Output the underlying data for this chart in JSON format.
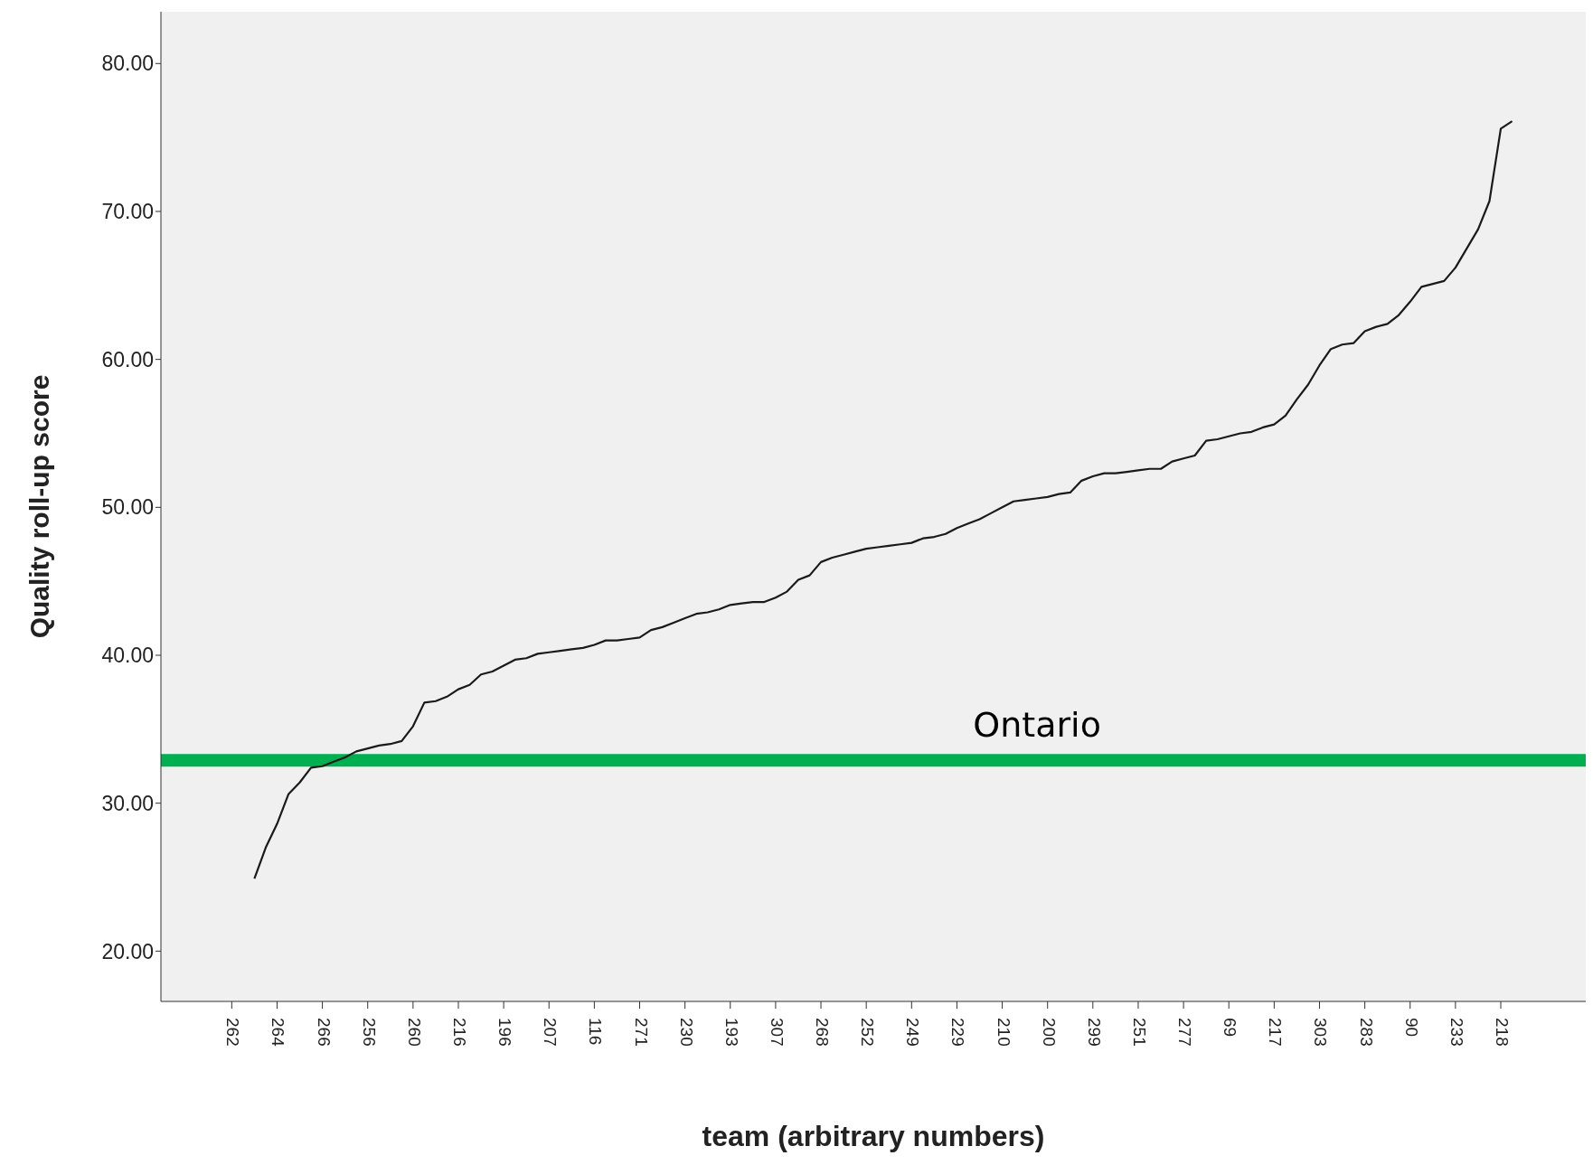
{
  "chart_data": {
    "type": "line",
    "xlabel": "team (arbitrary numbers)",
    "ylabel": "Quality roll-up score",
    "categories": [
      "262",
      null,
      null,
      null,
      "264",
      null,
      null,
      null,
      "266",
      null,
      null,
      null,
      "256",
      null,
      null,
      null,
      "260",
      null,
      null,
      null,
      "216",
      null,
      null,
      null,
      "196",
      null,
      null,
      null,
      "207",
      null,
      null,
      null,
      "116",
      null,
      null,
      null,
      "271",
      null,
      null,
      null,
      "230",
      null,
      null,
      null,
      "193",
      null,
      null,
      null,
      "307",
      null,
      null,
      null,
      "268",
      null,
      null,
      null,
      "252",
      null,
      null,
      null,
      "249",
      null,
      null,
      null,
      "229",
      null,
      null,
      null,
      "210",
      null,
      null,
      null,
      "200",
      null,
      null,
      null,
      "299",
      null,
      null,
      null,
      "251",
      null,
      null,
      null,
      "277",
      null,
      null,
      null,
      "69",
      null,
      null,
      null,
      "217",
      null,
      null,
      null,
      "303",
      null,
      null,
      null,
      "283",
      null,
      null,
      null,
      "90",
      null,
      null,
      null,
      "233",
      null,
      null,
      null,
      "218",
      null
    ],
    "series": [
      {
        "color": "#1a1a1a",
        "values": [
          null,
          null,
          24.9,
          27.0,
          28.6,
          30.6,
          31.4,
          32.4,
          32.5,
          32.8,
          33.1,
          33.5,
          33.7,
          33.9,
          34.0,
          34.2,
          35.2,
          36.8,
          36.9,
          37.2,
          37.7,
          38.0,
          38.7,
          38.9,
          39.3,
          39.7,
          39.8,
          40.1,
          40.2,
          40.3,
          40.4,
          40.5,
          40.7,
          41.0,
          41.0,
          41.1,
          41.2,
          41.7,
          41.9,
          42.2,
          42.5,
          42.8,
          42.9,
          43.1,
          43.4,
          43.5,
          43.6,
          43.6,
          43.9,
          44.3,
          45.1,
          45.4,
          46.3,
          46.6,
          46.8,
          47.0,
          47.2,
          47.3,
          47.4,
          47.5,
          47.6,
          47.9,
          48.0,
          48.2,
          48.6,
          48.9,
          49.2,
          49.6,
          50.0,
          50.4,
          50.5,
          50.6,
          50.7,
          50.9,
          51.0,
          51.8,
          52.1,
          52.3,
          52.3,
          52.4,
          52.5,
          52.6,
          52.6,
          53.1,
          53.3,
          53.5,
          54.5,
          54.6,
          54.8,
          55.0,
          55.1,
          55.4,
          55.6,
          56.2,
          57.3,
          58.3,
          59.6,
          60.7,
          61.0,
          61.1,
          61.9,
          62.2,
          62.4,
          63.0,
          63.9,
          64.9,
          65.1,
          65.3,
          66.2,
          67.5,
          68.8,
          70.7,
          75.6,
          76.1
        ]
      }
    ],
    "ylim": [
      16.6,
      83.5
    ],
    "yticks": [
      {
        "value": 20,
        "label": "20.00"
      },
      {
        "value": 30,
        "label": "30.00"
      },
      {
        "value": 40,
        "label": "40.00"
      },
      {
        "value": 50,
        "label": "50.00"
      },
      {
        "value": 60,
        "label": "60.00"
      },
      {
        "value": 70,
        "label": "70.00"
      },
      {
        "value": 80,
        "label": "80.00"
      }
    ],
    "ref_lines": [
      {
        "axis": "y",
        "value": 32.9,
        "label": "Ontario",
        "color": "#00b050"
      }
    ],
    "marker": "none",
    "line_style": "solid"
  }
}
